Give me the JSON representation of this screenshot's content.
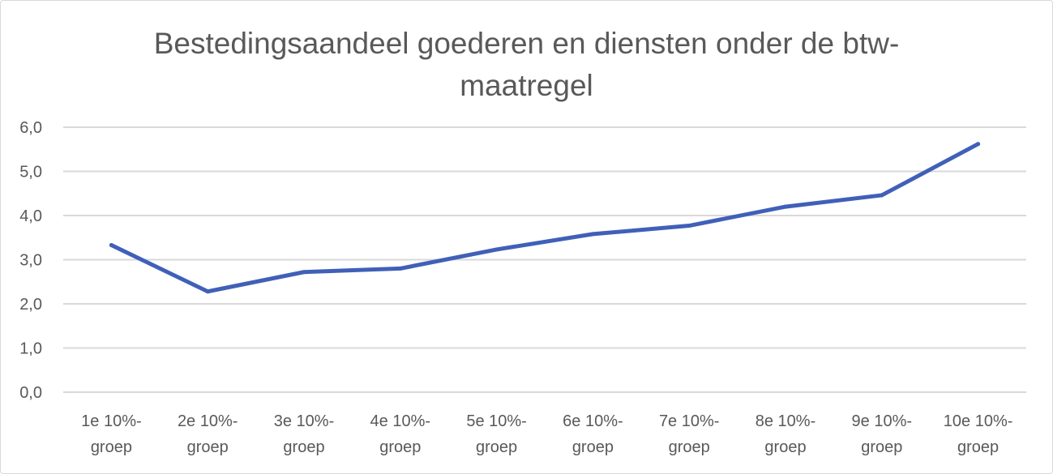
{
  "chart_data": {
    "type": "line",
    "title": "Bestedingsaandeel goederen en diensten onder de btw-maatregel",
    "categories": [
      [
        "1e 10%-",
        "groep"
      ],
      [
        "2e 10%-",
        "groep"
      ],
      [
        "3e 10%-",
        "groep"
      ],
      [
        "4e 10%-",
        "groep"
      ],
      [
        "5e 10%-",
        "groep"
      ],
      [
        "6e 10%-",
        "groep"
      ],
      [
        "7e 10%-",
        "groep"
      ],
      [
        "8e 10%-",
        "groep"
      ],
      [
        "9e 10%-",
        "groep"
      ],
      [
        "10e 10%-",
        "groep"
      ]
    ],
    "values": [
      3.33,
      2.28,
      2.72,
      2.8,
      3.23,
      3.58,
      3.77,
      4.2,
      4.46,
      5.62
    ],
    "ylim": [
      0,
      6
    ],
    "y_ticks": [
      "0,0",
      "1,0",
      "2,0",
      "3,0",
      "4,0",
      "5,0",
      "6,0"
    ],
    "grid": true,
    "xlabel": "",
    "ylabel": "",
    "line_color": "#4060b8"
  }
}
